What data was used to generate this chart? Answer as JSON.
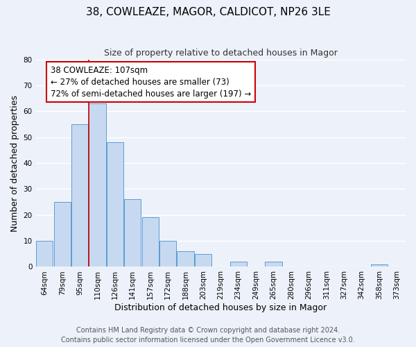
{
  "title": "38, COWLEAZE, MAGOR, CALDICOT, NP26 3LE",
  "subtitle": "Size of property relative to detached houses in Magor",
  "xlabel": "Distribution of detached houses by size in Magor",
  "ylabel": "Number of detached properties",
  "categories": [
    "64sqm",
    "79sqm",
    "95sqm",
    "110sqm",
    "126sqm",
    "141sqm",
    "157sqm",
    "172sqm",
    "188sqm",
    "203sqm",
    "219sqm",
    "234sqm",
    "249sqm",
    "265sqm",
    "280sqm",
    "296sqm",
    "311sqm",
    "327sqm",
    "342sqm",
    "358sqm",
    "373sqm"
  ],
  "values": [
    10,
    25,
    55,
    63,
    48,
    26,
    19,
    10,
    6,
    5,
    0,
    2,
    0,
    2,
    0,
    0,
    0,
    0,
    0,
    1,
    0
  ],
  "bar_color": "#c7d9f0",
  "bar_edge_color": "#5b9bd5",
  "vline_x": 2.5,
  "vline_color": "#cc0000",
  "annotation_text": "38 COWLEAZE: 107sqm\n← 27% of detached houses are smaller (73)\n72% of semi-detached houses are larger (197) →",
  "annotation_box_color": "#ffffff",
  "annotation_box_edge_color": "#cc0000",
  "ylim": [
    0,
    80
  ],
  "yticks": [
    0,
    10,
    20,
    30,
    40,
    50,
    60,
    70,
    80
  ],
  "footer_line1": "Contains HM Land Registry data © Crown copyright and database right 2024.",
  "footer_line2": "Contains public sector information licensed under the Open Government Licence v3.0.",
  "bg_color": "#edf2fa",
  "grid_color": "#ffffff",
  "title_fontsize": 11,
  "subtitle_fontsize": 9,
  "axis_label_fontsize": 9,
  "tick_fontsize": 7.5,
  "annotation_fontsize": 8.5,
  "footer_fontsize": 7
}
